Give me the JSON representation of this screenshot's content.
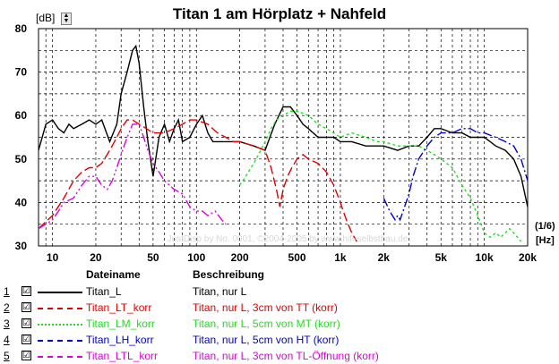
{
  "window": {
    "title": "Titan 1 am Hörplatz + Nahfeld"
  },
  "y_unit": "[dB]",
  "x_unit_top": "(1/6)",
  "x_unit_bottom": "[Hz]",
  "watermark": "JustDisp by No. 0001, ©2004-2005 by www.hifi-selbstbau.de",
  "colors": {
    "c1": "#000000",
    "c2": "#e00000",
    "c3": "#22dd22",
    "c4": "#0000cc",
    "c5": "#dd00dd",
    "grid": "#000000"
  },
  "chart_data": {
    "type": "line",
    "title": "Titan 1 am Hörplatz + Nahfeld",
    "xscale": "log",
    "xlim": [
      8,
      20000
    ],
    "ylim": [
      30,
      80
    ],
    "yticks": [
      "80",
      "70",
      "60",
      "50",
      "40",
      "30"
    ],
    "xticks": [
      "10",
      "20",
      "50",
      "100",
      "200",
      "500",
      "1k",
      "2k",
      "5k",
      "10k",
      "20k"
    ],
    "series": [
      {
        "name": "Titan_L",
        "color": "#000000",
        "dash": "",
        "points": [
          [
            8,
            52
          ],
          [
            9,
            58
          ],
          [
            10,
            59
          ],
          [
            11,
            57
          ],
          [
            12,
            56
          ],
          [
            13,
            58
          ],
          [
            14,
            57
          ],
          [
            16,
            58
          ],
          [
            18,
            59
          ],
          [
            20,
            58
          ],
          [
            22,
            59
          ],
          [
            25,
            54
          ],
          [
            28,
            58
          ],
          [
            30,
            65
          ],
          [
            33,
            70
          ],
          [
            36,
            75
          ],
          [
            38,
            76
          ],
          [
            40,
            72
          ],
          [
            43,
            62
          ],
          [
            46,
            54
          ],
          [
            50,
            46
          ],
          [
            55,
            55
          ],
          [
            60,
            58
          ],
          [
            65,
            54
          ],
          [
            70,
            57
          ],
          [
            75,
            59
          ],
          [
            80,
            54
          ],
          [
            90,
            55
          ],
          [
            100,
            58
          ],
          [
            110,
            60
          ],
          [
            120,
            56
          ],
          [
            130,
            54
          ],
          [
            150,
            54
          ],
          [
            170,
            54
          ],
          [
            200,
            54
          ],
          [
            250,
            53
          ],
          [
            300,
            52
          ],
          [
            350,
            58
          ],
          [
            400,
            62
          ],
          [
            450,
            62
          ],
          [
            500,
            60
          ],
          [
            550,
            58
          ],
          [
            600,
            57
          ],
          [
            700,
            55
          ],
          [
            800,
            55
          ],
          [
            900,
            55
          ],
          [
            1000,
            54
          ],
          [
            1200,
            54
          ],
          [
            1500,
            53
          ],
          [
            2000,
            53
          ],
          [
            2500,
            52
          ],
          [
            3000,
            53
          ],
          [
            3500,
            53
          ],
          [
            4000,
            55
          ],
          [
            4500,
            57
          ],
          [
            5000,
            57
          ],
          [
            6000,
            56
          ],
          [
            7000,
            56
          ],
          [
            8000,
            55
          ],
          [
            10000,
            55
          ],
          [
            12000,
            53
          ],
          [
            14000,
            52
          ],
          [
            16000,
            50
          ],
          [
            18000,
            46
          ],
          [
            20000,
            39
          ]
        ]
      },
      {
        "name": "Titan_LT_korr",
        "color": "#e00000",
        "dash": "10,4",
        "points": [
          [
            8,
            34
          ],
          [
            10,
            37
          ],
          [
            12,
            41
          ],
          [
            14,
            45
          ],
          [
            16,
            47
          ],
          [
            18,
            48
          ],
          [
            20,
            48
          ],
          [
            22,
            49
          ],
          [
            25,
            52
          ],
          [
            28,
            55
          ],
          [
            30,
            57
          ],
          [
            33,
            59
          ],
          [
            36,
            59
          ],
          [
            40,
            58
          ],
          [
            45,
            57
          ],
          [
            50,
            56
          ],
          [
            60,
            56
          ],
          [
            70,
            57
          ],
          [
            80,
            58
          ],
          [
            90,
            59
          ],
          [
            100,
            59
          ],
          [
            120,
            58
          ],
          [
            140,
            56
          ],
          [
            160,
            55
          ],
          [
            180,
            54
          ],
          [
            200,
            54
          ],
          [
            250,
            53
          ],
          [
            300,
            52
          ],
          [
            330,
            48
          ],
          [
            360,
            43
          ],
          [
            380,
            39
          ],
          [
            400,
            43
          ],
          [
            430,
            46
          ],
          [
            460,
            48
          ],
          [
            500,
            50
          ],
          [
            550,
            51
          ],
          [
            600,
            50
          ],
          [
            700,
            49
          ],
          [
            800,
            47
          ],
          [
            900,
            44
          ],
          [
            1000,
            40
          ],
          [
            1100,
            36
          ],
          [
            1200,
            33
          ],
          [
            1300,
            31
          ]
        ]
      },
      {
        "name": "Titan_LM_korr",
        "color": "#22dd22",
        "dash": "3,3",
        "points": [
          [
            200,
            44
          ],
          [
            220,
            46
          ],
          [
            250,
            49
          ],
          [
            280,
            52
          ],
          [
            300,
            54
          ],
          [
            330,
            57
          ],
          [
            360,
            59
          ],
          [
            400,
            60
          ],
          [
            450,
            61
          ],
          [
            500,
            61
          ],
          [
            600,
            60
          ],
          [
            700,
            58
          ],
          [
            800,
            57
          ],
          [
            900,
            56
          ],
          [
            1000,
            55
          ],
          [
            1200,
            56
          ],
          [
            1500,
            55
          ],
          [
            1800,
            54
          ],
          [
            2000,
            54
          ],
          [
            2500,
            53
          ],
          [
            3000,
            53
          ],
          [
            3500,
            53
          ],
          [
            4000,
            52
          ],
          [
            4500,
            51
          ],
          [
            5000,
            50
          ],
          [
            6000,
            48
          ],
          [
            7000,
            44
          ],
          [
            8000,
            41
          ],
          [
            9000,
            37
          ],
          [
            10000,
            33
          ],
          [
            11000,
            32
          ],
          [
            12000,
            33
          ],
          [
            13000,
            32
          ],
          [
            15000,
            34
          ],
          [
            17000,
            32
          ],
          [
            18000,
            31
          ]
        ]
      },
      {
        "name": "Titan_LH_korr",
        "color": "#0000cc",
        "dash": "10,3,2,3",
        "points": [
          [
            2000,
            41
          ],
          [
            2200,
            38
          ],
          [
            2400,
            36
          ],
          [
            2500,
            37
          ],
          [
            2600,
            36
          ],
          [
            3000,
            42
          ],
          [
            3200,
            46
          ],
          [
            3500,
            50
          ],
          [
            4000,
            53
          ],
          [
            4500,
            55
          ],
          [
            5000,
            56
          ],
          [
            6000,
            56
          ],
          [
            7000,
            57
          ],
          [
            8000,
            57
          ],
          [
            9000,
            56
          ],
          [
            10000,
            56
          ],
          [
            12000,
            55
          ],
          [
            14000,
            54
          ],
          [
            16000,
            53
          ],
          [
            18000,
            50
          ],
          [
            20000,
            45
          ]
        ]
      },
      {
        "name": "Titan_LTL_korr",
        "color": "#dd00dd",
        "dash": "10,3,2,3,2,3",
        "points": [
          [
            8,
            34
          ],
          [
            9,
            35
          ],
          [
            10,
            36
          ],
          [
            11,
            38
          ],
          [
            12,
            40
          ],
          [
            14,
            41
          ],
          [
            16,
            44
          ],
          [
            18,
            46
          ],
          [
            20,
            46
          ],
          [
            22,
            44
          ],
          [
            24,
            43
          ],
          [
            26,
            45
          ],
          [
            28,
            48
          ],
          [
            30,
            51
          ],
          [
            33,
            55
          ],
          [
            36,
            58
          ],
          [
            40,
            58
          ],
          [
            43,
            55
          ],
          [
            46,
            52
          ],
          [
            50,
            49
          ],
          [
            55,
            47
          ],
          [
            60,
            45
          ],
          [
            70,
            43
          ],
          [
            80,
            42
          ],
          [
            90,
            39
          ],
          [
            100,
            38
          ],
          [
            110,
            38
          ],
          [
            120,
            37
          ],
          [
            135,
            38
          ],
          [
            150,
            36
          ],
          [
            160,
            35
          ]
        ]
      }
    ]
  },
  "legend": {
    "col_name": "Dateiname",
    "col_desc": "Beschreibung",
    "rows": [
      {
        "num": "1",
        "name": "Titan_L",
        "desc": "Titan, nur L",
        "color": "#000000",
        "check": "☑"
      },
      {
        "num": "2",
        "name": "Titan_LT_korr",
        "desc": "Titan, nur L, 3cm von TT (korr)",
        "color": "#e00000",
        "check": "☑"
      },
      {
        "num": "3",
        "name": "Titan_LM_korr",
        "desc": "Titan, nur L, 5cm von MT (korr)",
        "color": "#22dd22",
        "check": "☑"
      },
      {
        "num": "4",
        "name": "Titan_LH_korr",
        "desc": "Titan, nur L, 5cm von HT (korr)",
        "color": "#0000cc",
        "check": "☑"
      },
      {
        "num": "5",
        "name": "Titan_LTL_korr",
        "desc": "Titan, nur L, 3cm von TL-Öffnung (korr)",
        "color": "#dd00dd",
        "check": "☑"
      }
    ]
  }
}
